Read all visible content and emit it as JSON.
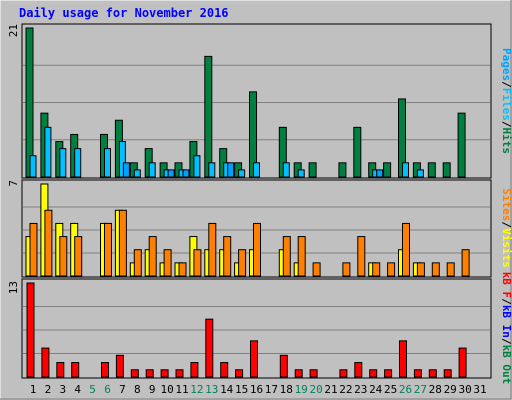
{
  "title": "Daily usage for November 2016",
  "colors": {
    "background": "#c0c0c0",
    "panel": "#c0c0c0",
    "title": "#0000ff",
    "hits": "#008040",
    "files": "#00c0ff",
    "pages": "#00a0ff",
    "visits": "#ffff00",
    "sites": "#ff8000",
    "kbin": "#0000ff",
    "kbout": "#008040",
    "kbf": "#ff0000",
    "weekend": "#00805c",
    "weekday": "#000000"
  },
  "chart_data": [
    {
      "type": "bar",
      "id": "hits-files-pages",
      "title": "Daily usage for November 2016",
      "ylabel_parts": [
        {
          "text": "Pages",
          "color": "#00a0ff"
        },
        {
          "text": "/",
          "color": "#000000"
        },
        {
          "text": "Files",
          "color": "#00c0ff"
        },
        {
          "text": "/",
          "color": "#000000"
        },
        {
          "text": "Hits",
          "color": "#008040"
        }
      ],
      "ymax_label": "21",
      "ylim": [
        0,
        21
      ],
      "categories": [
        "1",
        "2",
        "3",
        "4",
        "5",
        "6",
        "7",
        "8",
        "9",
        "10",
        "11",
        "12",
        "13",
        "14",
        "15",
        "16",
        "17",
        "18",
        "19",
        "20",
        "21",
        "22",
        "23",
        "24",
        "25",
        "26",
        "27",
        "28",
        "29",
        "30",
        "31"
      ],
      "series": [
        {
          "name": "Hits",
          "color": "#008040",
          "values": [
            21,
            9,
            5,
            6,
            0,
            6,
            8,
            2,
            4,
            2,
            2,
            5,
            17,
            4,
            2,
            12,
            0,
            7,
            2,
            2,
            0,
            2,
            7,
            2,
            2,
            11,
            2,
            2,
            2,
            9,
            0
          ]
        },
        {
          "name": "Files",
          "color": "#00c0ff",
          "values": [
            3,
            7,
            4,
            4,
            0,
            4,
            5,
            1,
            2,
            1,
            1,
            3,
            2,
            2,
            1,
            2,
            0,
            2,
            1,
            0,
            0,
            0,
            0,
            1,
            0,
            2,
            1,
            0,
            0,
            0,
            0
          ]
        },
        {
          "name": "Pages",
          "color": "#00a0ff",
          "values": [
            0,
            0,
            0,
            0,
            0,
            0,
            2,
            0,
            0,
            1,
            1,
            0,
            0,
            2,
            0,
            0,
            0,
            0,
            0,
            0,
            0,
            0,
            0,
            1,
            0,
            0,
            0,
            0,
            0,
            0,
            0
          ]
        }
      ]
    },
    {
      "type": "bar",
      "id": "visits-sites",
      "ylabel_parts": [
        {
          "text": "Sites",
          "color": "#ff8000"
        },
        {
          "text": "/",
          "color": "#000000"
        },
        {
          "text": "Visits",
          "color": "#ffff00"
        }
      ],
      "ymax_label": "7",
      "ylim": [
        0,
        7
      ],
      "categories": [
        "1",
        "2",
        "3",
        "4",
        "5",
        "6",
        "7",
        "8",
        "9",
        "10",
        "11",
        "12",
        "13",
        "14",
        "15",
        "16",
        "17",
        "18",
        "19",
        "20",
        "21",
        "22",
        "23",
        "24",
        "25",
        "26",
        "27",
        "28",
        "29",
        "30",
        "31"
      ],
      "series": [
        {
          "name": "Visits",
          "color": "#ffff00",
          "values": [
            3,
            7,
            4,
            4,
            0,
            4,
            5,
            1,
            2,
            1,
            1,
            3,
            2,
            2,
            1,
            2,
            0,
            2,
            1,
            0,
            0,
            0,
            0,
            1,
            0,
            2,
            1,
            0,
            0,
            0,
            0
          ]
        },
        {
          "name": "Sites",
          "color": "#ff8000",
          "values": [
            4,
            5,
            3,
            3,
            0,
            4,
            5,
            2,
            3,
            2,
            1,
            2,
            4,
            3,
            2,
            4,
            0,
            3,
            3,
            1,
            0,
            1,
            3,
            1,
            1,
            4,
            1,
            1,
            1,
            2,
            0
          ]
        }
      ]
    },
    {
      "type": "bar",
      "id": "kbytes",
      "ylabel_parts": [
        {
          "text": "kB F",
          "color": "#ff0000"
        },
        {
          "text": "/",
          "color": "#000000"
        },
        {
          "text": "kB In",
          "color": "#0000ff"
        },
        {
          "text": "/",
          "color": "#000000"
        },
        {
          "text": "kB Out",
          "color": "#008040"
        }
      ],
      "ymax_label": "13",
      "ylim": [
        0,
        13
      ],
      "categories": [
        "1",
        "2",
        "3",
        "4",
        "5",
        "6",
        "7",
        "8",
        "9",
        "10",
        "11",
        "12",
        "13",
        "14",
        "15",
        "16",
        "17",
        "18",
        "19",
        "20",
        "21",
        "22",
        "23",
        "24",
        "25",
        "26",
        "27",
        "28",
        "29",
        "30",
        "31"
      ],
      "series": [
        {
          "name": "kB F",
          "color": "#ff0000",
          "values": [
            13,
            4,
            2,
            2,
            0,
            2,
            3,
            1,
            1,
            1,
            1,
            2,
            8,
            2,
            1,
            5,
            0,
            3,
            1,
            1,
            0,
            1,
            2,
            1,
            1,
            5,
            1,
            1,
            1,
            4,
            0
          ]
        }
      ]
    }
  ],
  "xaxis": {
    "labels": [
      "1",
      "2",
      "3",
      "4",
      "5",
      "6",
      "7",
      "8",
      "9",
      "10",
      "11",
      "12",
      "13",
      "14",
      "15",
      "16",
      "17",
      "18",
      "19",
      "20",
      "21",
      "22",
      "23",
      "24",
      "25",
      "26",
      "27",
      "28",
      "29",
      "30",
      "31"
    ],
    "weekend_days": [
      5,
      6,
      12,
      13,
      19,
      20,
      26,
      27
    ]
  }
}
